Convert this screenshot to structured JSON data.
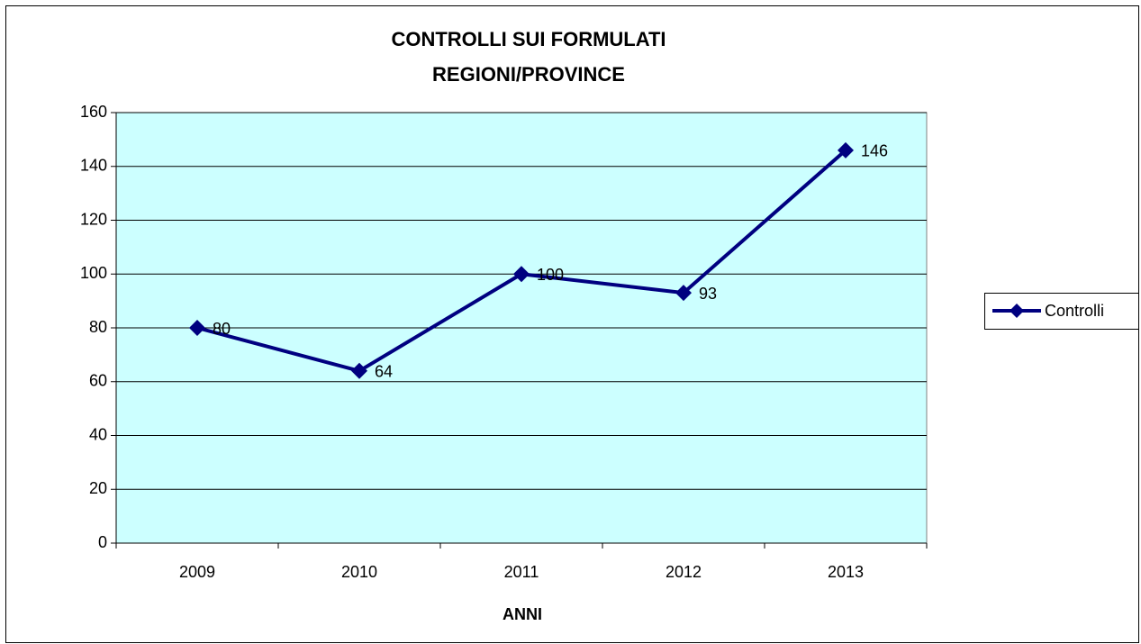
{
  "chart_data": {
    "type": "line",
    "title": [
      "CONTROLLI SUI FORMULATI",
      "REGIONI/PROVINCE"
    ],
    "x_label": "ANNI",
    "categories": [
      "2009",
      "2010",
      "2011",
      "2012",
      "2013"
    ],
    "series": [
      {
        "name": "Controlli",
        "color": "#000080",
        "values": [
          80,
          64,
          100,
          93,
          146
        ]
      }
    ],
    "ylim": [
      0,
      160
    ],
    "yticks": [
      0,
      20,
      40,
      60,
      80,
      100,
      120,
      140,
      160
    ],
    "grid": true,
    "legend": "right",
    "plot_background": "#ccffff"
  }
}
